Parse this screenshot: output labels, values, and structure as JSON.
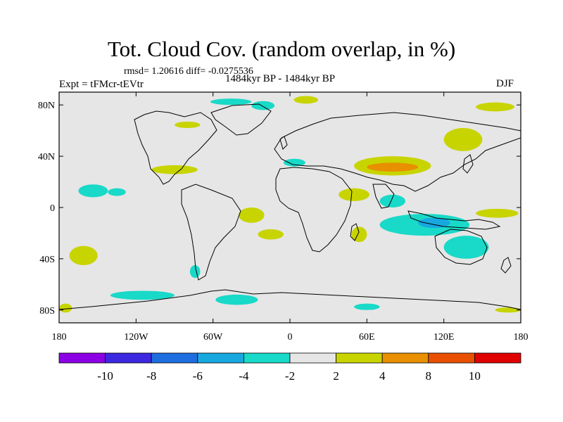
{
  "header": {
    "title": "Tot. Cloud Cov. (random overlap, in %)",
    "stats": "rmsd= 1.20616 diff= -0.0275536",
    "experiment": "Expt = tFMcr-tEVtr",
    "period": "1484kyr BP - 1484kyr BP",
    "season": "DJF"
  },
  "map": {
    "projection": "cylindrical equidistant",
    "lon_range": [
      -180,
      180
    ],
    "lat_range": [
      -90,
      90
    ],
    "background_color": "#e6e6e6",
    "x_ticks": [
      {
        "lon": -180,
        "label": "180"
      },
      {
        "lon": -120,
        "label": "120W"
      },
      {
        "lon": -60,
        "label": "60W"
      },
      {
        "lon": 0,
        "label": "0"
      },
      {
        "lon": 60,
        "label": "60E"
      },
      {
        "lon": 120,
        "label": "120E"
      },
      {
        "lon": 180,
        "label": "180"
      }
    ],
    "y_ticks": [
      {
        "lat": 80,
        "label": "80N"
      },
      {
        "lat": 40,
        "label": "40N"
      },
      {
        "lat": 0,
        "label": "0"
      },
      {
        "lat": -40,
        "label": "40S"
      },
      {
        "lat": -80,
        "label": "80S"
      }
    ],
    "anomaly_regions": [
      {
        "region": "north-pacific-subtropics",
        "level": "-4 to -2",
        "color": "#19d9c8",
        "lon": [
          -165,
          -142
        ],
        "lat": [
          18,
          8
        ]
      },
      {
        "region": "north-pacific-west",
        "level": "-4 to -2",
        "color": "#19d9c8",
        "lon": [
          -142,
          -128
        ],
        "lat": [
          15,
          9
        ]
      },
      {
        "region": "northeast-pacific",
        "level": "2 to 4",
        "color": "#c8d400",
        "lon": [
          -108,
          -72
        ],
        "lat": [
          33,
          26
        ]
      },
      {
        "region": "canada",
        "level": "2 to 4",
        "color": "#c8d400",
        "lon": [
          -90,
          -70
        ],
        "lat": [
          67,
          62
        ]
      },
      {
        "region": "greenland-north",
        "level": "-4 to -2",
        "color": "#19d9c8",
        "lon": [
          -62,
          -30
        ],
        "lat": [
          85,
          80
        ]
      },
      {
        "region": "greenland-east",
        "level": "-4 to -2",
        "color": "#19d9c8",
        "lon": [
          -30,
          -12
        ],
        "lat": [
          83,
          76
        ]
      },
      {
        "region": "arctic-north-atlantic",
        "level": "2 to 4",
        "color": "#c8d400",
        "lon": [
          3,
          22
        ],
        "lat": [
          87,
          81
        ]
      },
      {
        "region": "mediterranean",
        "level": "-4 to -2",
        "color": "#19d9c8",
        "lon": [
          -5,
          12
        ],
        "lat": [
          38,
          32
        ]
      },
      {
        "region": "tibetan-plateau",
        "level": "2 to 4",
        "color": "#c8d400",
        "lon": [
          50,
          110
        ],
        "lat": [
          40,
          25
        ]
      },
      {
        "region": "tibetan-plateau-core",
        "level": "4 to 8",
        "color": "#e89000",
        "lon": [
          60,
          100
        ],
        "lat": [
          35,
          28
        ]
      },
      {
        "region": "northeast-asia",
        "level": "2 to 4",
        "color": "#c8d400",
        "lon": [
          120,
          150
        ],
        "lat": [
          62,
          44
        ]
      },
      {
        "region": "northwest-pacific",
        "level": "2 to 4",
        "color": "#c8d400",
        "lon": [
          145,
          175
        ],
        "lat": [
          82,
          75
        ]
      },
      {
        "region": "east-africa-arabia",
        "level": "2 to 4",
        "color": "#c8d400",
        "lon": [
          38,
          62
        ],
        "lat": [
          15,
          5
        ]
      },
      {
        "region": "indian-ocean-north",
        "level": "-4 to -2",
        "color": "#19d9c8",
        "lon": [
          70,
          90
        ],
        "lat": [
          10,
          0
        ]
      },
      {
        "region": "south-atlantic-brazil",
        "level": "2 to 4",
        "color": "#c8d400",
        "lon": [
          -40,
          -20
        ],
        "lat": [
          0,
          -12
        ]
      },
      {
        "region": "south-atlantic-central",
        "level": "2 to 4",
        "color": "#c8d400",
        "lon": [
          -25,
          -5
        ],
        "lat": [
          -17,
          -25
        ]
      },
      {
        "region": "southern-indian-ocean",
        "level": "-4 to -2",
        "color": "#19d9c8",
        "lon": [
          70,
          140
        ],
        "lat": [
          -5,
          -22
        ]
      },
      {
        "region": "maritime-continent",
        "level": "-6 to -4",
        "color": "#18a8e0",
        "lon": [
          100,
          125
        ],
        "lat": [
          -8,
          -16
        ]
      },
      {
        "region": "madagascar",
        "level": "2 to 4",
        "color": "#c8d400",
        "lon": [
          48,
          60
        ],
        "lat": [
          -15,
          -27
        ]
      },
      {
        "region": "australia",
        "level": "-4 to -2",
        "color": "#19d9c8",
        "lon": [
          120,
          155
        ],
        "lat": [
          -22,
          -40
        ]
      },
      {
        "region": "new-guinea",
        "level": "2 to 4",
        "color": "#c8d400",
        "lon": [
          145,
          178
        ],
        "lat": [
          -1,
          -8
        ]
      },
      {
        "region": "south-pacific",
        "level": "2 to 4",
        "color": "#c8d400",
        "lon": [
          -172,
          -150
        ],
        "lat": [
          -30,
          -45
        ]
      },
      {
        "region": "southern-ocean-pacific",
        "level": "-4 to -2",
        "color": "#19d9c8",
        "lon": [
          -140,
          -90
        ],
        "lat": [
          -65,
          -72
        ]
      },
      {
        "region": "southern-ocean-atlantic",
        "level": "-4 to -2",
        "color": "#19d9c8",
        "lon": [
          -58,
          -25
        ],
        "lat": [
          -68,
          -76
        ]
      },
      {
        "region": "southern-ocean-indian",
        "level": "-4 to -2",
        "color": "#19d9c8",
        "lon": [
          50,
          70
        ],
        "lat": [
          -75,
          -80
        ]
      },
      {
        "region": "antarctic-peninsula",
        "level": "2 to 4",
        "color": "#c8d400",
        "lon": [
          -180,
          -170
        ],
        "lat": [
          -75,
          -82
        ]
      },
      {
        "region": "patagonia",
        "level": "-4 to -2",
        "color": "#19d9c8",
        "lon": [
          -78,
          -70
        ],
        "lat": [
          -45,
          -55
        ]
      },
      {
        "region": "antarctic-east",
        "level": "2 to 4",
        "color": "#c8d400",
        "lon": [
          160,
          180
        ],
        "lat": [
          -78,
          -82
        ]
      }
    ]
  },
  "colorbar": {
    "labels": [
      "-10",
      "-8",
      "-6",
      "-4",
      "-2",
      "2",
      "4",
      "8",
      "10"
    ],
    "colors": [
      "#8c00e6",
      "#3c28e0",
      "#1e6ee0",
      "#18a8e0",
      "#19d9c8",
      "#e6e6e6",
      "#c8d400",
      "#e89000",
      "#e85000",
      "#e00000"
    ]
  }
}
